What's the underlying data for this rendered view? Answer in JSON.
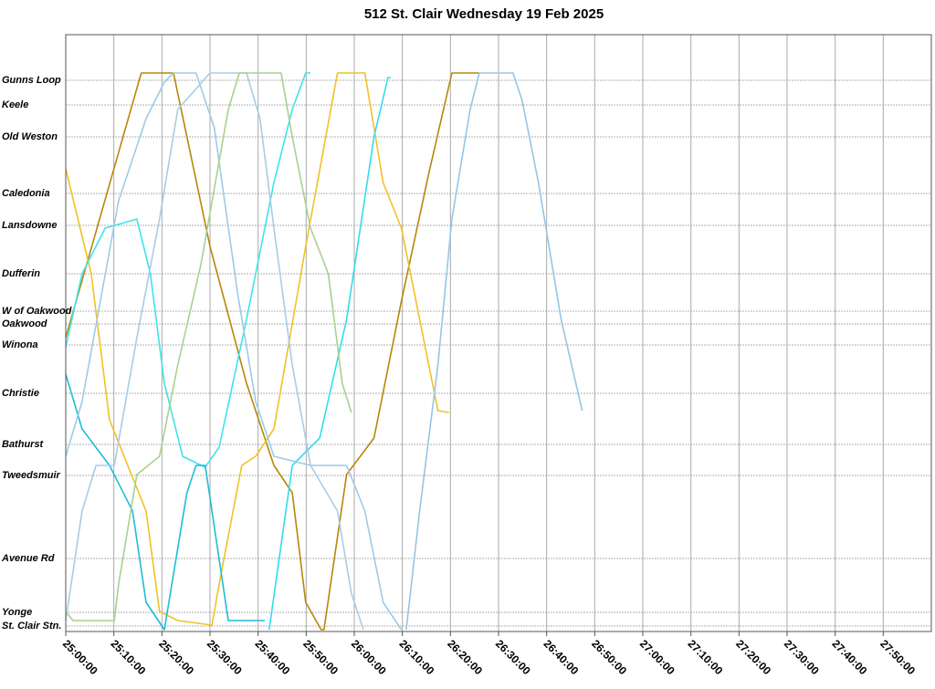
{
  "chart_data": {
    "type": "line",
    "title": "512 St. Clair Wednesday 19 Feb 2025",
    "xlim": [
      0,
      180
    ],
    "ylim": [
      -0.06,
      6.48
    ],
    "grid": true,
    "xticks": [
      {
        "value": 0,
        "label": "25:00:00"
      },
      {
        "value": 10,
        "label": "25:10:00"
      },
      {
        "value": 20,
        "label": "25:20:00"
      },
      {
        "value": 30,
        "label": "25:30:00"
      },
      {
        "value": 40,
        "label": "25:40:00"
      },
      {
        "value": 50,
        "label": "25:50:00"
      },
      {
        "value": 60,
        "label": "26:00:00"
      },
      {
        "value": 70,
        "label": "26:10:00"
      },
      {
        "value": 80,
        "label": "26:20:00"
      },
      {
        "value": 90,
        "label": "26:30:00"
      },
      {
        "value": 100,
        "label": "26:40:00"
      },
      {
        "value": 110,
        "label": "26:50:00"
      },
      {
        "value": 120,
        "label": "27:00:00"
      },
      {
        "value": 130,
        "label": "27:10:00"
      },
      {
        "value": 140,
        "label": "27:20:00"
      },
      {
        "value": 150,
        "label": "27:30:00"
      },
      {
        "value": 160,
        "label": "27:40:00"
      },
      {
        "value": 170,
        "label": "27:50:00"
      }
    ],
    "yticks": [
      {
        "value": 5.98,
        "label": "Gunns Loop"
      },
      {
        "value": 5.71,
        "label": "Keele"
      },
      {
        "value": 5.36,
        "label": "Old Weston"
      },
      {
        "value": 4.74,
        "label": "Caledonia"
      },
      {
        "value": 4.39,
        "label": "Lansdowne"
      },
      {
        "value": 3.86,
        "label": "Dufferin"
      },
      {
        "value": 3.45,
        "label": "W of Oakwood"
      },
      {
        "value": 3.31,
        "label": "Oakwood"
      },
      {
        "value": 3.08,
        "label": "Winona"
      },
      {
        "value": 2.55,
        "label": "Christie"
      },
      {
        "value": 1.99,
        "label": "Bathurst"
      },
      {
        "value": 1.65,
        "label": "Tweedsmuir"
      },
      {
        "value": 0.74,
        "label": "Avenue Rd"
      },
      {
        "value": 0.15,
        "label": "Yonge"
      },
      {
        "value": 0.0,
        "label": "St. Clair Stn."
      }
    ],
    "series": [
      {
        "color": "#b8860b",
        "x": [
          0,
          15.7,
          22.4,
          30.0,
          37.6,
          43.3,
          47.1,
          49.9,
          53.1,
          53.7,
          58.4,
          64.1,
          69.8,
          75.5,
          80.3,
          86.0
        ],
        "values": [
          3.16,
          6.06,
          6.06,
          4.16,
          2.66,
          1.76,
          1.46,
          0.26,
          -0.04,
          -0.04,
          1.66,
          2.06,
          3.56,
          4.96,
          6.06,
          6.06
        ]
      },
      {
        "color": "#f2c028",
        "x": [
          0,
          5.3,
          9.1,
          12.9,
          16.7,
          19.5,
          23.3,
          30.4,
          31.9,
          36.6,
          39.5,
          43.3,
          49.9,
          56.5,
          62.2,
          66.0,
          69.8,
          73.6,
          77.4,
          79.7
        ],
        "values": [
          5.01,
          3.86,
          2.26,
          1.76,
          1.26,
          0.16,
          0.06,
          0.01,
          0.46,
          1.76,
          1.86,
          2.16,
          4.16,
          6.06,
          6.06,
          4.86,
          4.36,
          3.36,
          2.36,
          2.34
        ]
      },
      {
        "color": "#3fe3ea",
        "x": [
          0,
          3.4,
          8.2,
          14.8,
          17.6,
          20.5,
          24.3,
          29.0,
          31.9,
          37.6,
          43.3,
          47.1,
          49.9,
          50.9
        ],
        "values": [
          3.06,
          3.86,
          4.36,
          4.46,
          3.86,
          2.66,
          1.86,
          1.74,
          1.96,
          3.36,
          4.86,
          5.66,
          6.06,
          6.06
        ]
      },
      {
        "color": "#1fbcd8",
        "x": [
          0,
          3.4,
          9.1,
          13.9,
          16.7,
          20.5,
          25.2,
          27.1,
          29.0,
          33.8,
          41.4
        ],
        "values": [
          2.76,
          2.16,
          1.76,
          1.26,
          0.26,
          -0.04,
          1.46,
          1.76,
          1.76,
          0.06,
          0.06
        ]
      },
      {
        "color": "#33dced",
        "x": [
          42.3,
          47.1,
          52.8,
          58.4,
          64.1,
          67.0,
          67.6
        ],
        "values": [
          -0.04,
          1.76,
          2.06,
          3.36,
          5.36,
          6.01,
          6.01
        ]
      },
      {
        "color": "#9ccbe8",
        "x": [
          0,
          3.4,
          7.2,
          11.0,
          16.7,
          20.5,
          22.4,
          27.1,
          30.9,
          35.7,
          39.5,
          43.3,
          50.9,
          58.4,
          62.2,
          66.0,
          69.8
        ],
        "values": [
          1.86,
          2.46,
          3.56,
          4.66,
          5.56,
          5.96,
          6.06,
          6.06,
          5.46,
          3.66,
          2.46,
          1.86,
          1.76,
          1.76,
          1.26,
          0.26,
          -0.04
        ]
      },
      {
        "color": "#a7cde6",
        "x": [
          0,
          3.4,
          6.3,
          10.1,
          14.8,
          19.5,
          23.3,
          30.0,
          37.6,
          40.4,
          43.3,
          47.1,
          50.9,
          56.5,
          59.4,
          61.9
        ],
        "values": [
          0.06,
          1.26,
          1.76,
          1.76,
          3.16,
          4.46,
          5.66,
          6.06,
          6.06,
          5.56,
          4.36,
          2.86,
          1.76,
          1.26,
          0.36,
          -0.04
        ]
      },
      {
        "color": "#95c6e6",
        "x": [
          70.8,
          73.6,
          77.4,
          80.3,
          84.1,
          86.0,
          93.0,
          94.9,
          98.3,
          103.0,
          107.4
        ],
        "values": [
          -0.04,
          1.26,
          2.86,
          4.46,
          5.66,
          6.06,
          6.06,
          5.76,
          4.86,
          3.36,
          2.36
        ]
      },
      {
        "color": "#a8d18e",
        "x": [
          0,
          1.5,
          10.1,
          11.0,
          14.8,
          19.5,
          23.3,
          28.1,
          33.8,
          36.1,
          44.8,
          47.1,
          50.9,
          54.6,
          57.5,
          59.4
        ],
        "values": [
          0.16,
          0.06,
          0.06,
          0.46,
          1.66,
          1.86,
          2.86,
          3.96,
          5.66,
          6.06,
          6.06,
          5.36,
          4.36,
          3.86,
          2.66,
          2.34
        ]
      }
    ]
  }
}
